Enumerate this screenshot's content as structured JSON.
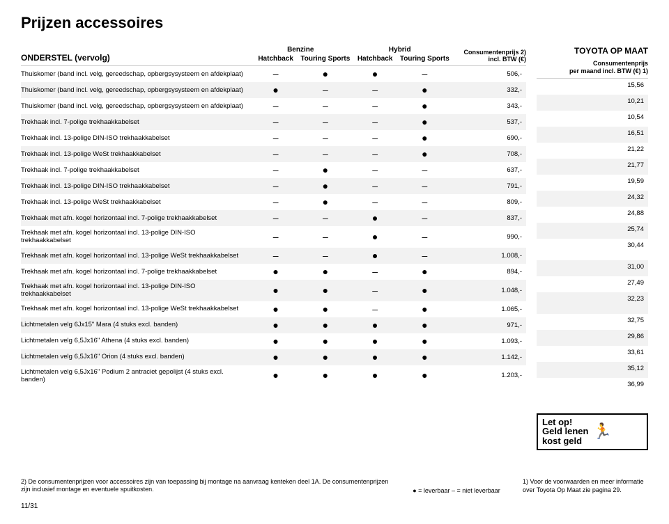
{
  "title": "Prijzen accessoires",
  "subtitle": "ONDERSTEL (vervolg)",
  "columns": {
    "group1": "Benzine",
    "group2": "Hybrid",
    "sub1": "Hatchback",
    "sub2": "Touring Sports",
    "sub3": "Hatchback",
    "sub4": "Touring Sports",
    "price_hdr_top": "Consumentenprijs 2)",
    "price_hdr_bot": "incl. BTW (€)"
  },
  "side": {
    "header": "TOYOTA OP MAAT",
    "sub_top": "Consumentenprijs",
    "sub_bot": "per maand incl. BTW (€) 1)"
  },
  "rows": [
    {
      "label": "Thuiskomer (band incl. velg, gereedschap, opbergsysysteem en afdekplaat)",
      "c": [
        "–",
        "●",
        "●",
        "–"
      ],
      "price": "506,-",
      "side": "15,56"
    },
    {
      "label": "Thuiskomer (band incl. velg, gereedschap, opbergsysysteem en afdekplaat)",
      "c": [
        "●",
        "–",
        "–",
        "●"
      ],
      "price": "332,-",
      "side": "10,21"
    },
    {
      "label": "Thuiskomer (band incl. velg, gereedschap, opbergsysysteem en afdekplaat)",
      "c": [
        "–",
        "–",
        "–",
        "●"
      ],
      "price": "343,-",
      "side": "10,54"
    },
    {
      "label": "Trekhaak incl. 7-polige trekhaakkabelset",
      "c": [
        "–",
        "–",
        "–",
        "●"
      ],
      "price": "537,-",
      "side": "16,51"
    },
    {
      "label": "Trekhaak incl. 13-polige DIN-ISO trekhaakkabelset",
      "c": [
        "–",
        "–",
        "–",
        "●"
      ],
      "price": "690,-",
      "side": "21,22"
    },
    {
      "label": "Trekhaak incl. 13-polige WeSt trekhaakkabelset",
      "c": [
        "–",
        "–",
        "–",
        "●"
      ],
      "price": "708,-",
      "side": "21,77"
    },
    {
      "label": "Trekhaak incl. 7-polige trekhaakkabelset",
      "c": [
        "–",
        "●",
        "–",
        "–"
      ],
      "price": "637,-",
      "side": "19,59"
    },
    {
      "label": "Trekhaak incl. 13-polige DIN-ISO trekhaakkabelset",
      "c": [
        "–",
        "●",
        "–",
        "–"
      ],
      "price": "791,-",
      "side": "24,32"
    },
    {
      "label": "Trekhaak incl. 13-polige WeSt trekhaakkabelset",
      "c": [
        "–",
        "●",
        "–",
        "–"
      ],
      "price": "809,-",
      "side": "24,88"
    },
    {
      "label": "Trekhaak met afn. kogel horizontaal incl. 7-polige trekhaakkabelset",
      "c": [
        "–",
        "–",
        "●",
        "–"
      ],
      "price": "837,-",
      "side": "25,74"
    },
    {
      "label": "Trekhaak met afn. kogel horizontaal incl. 13-polige DIN-ISO trekhaakkabelset",
      "c": [
        "–",
        "–",
        "●",
        "–"
      ],
      "price": "990,-",
      "side": "30,44"
    },
    {
      "label": "Trekhaak met afn. kogel horizontaal incl. 13-polige WeSt trekhaakkabelset",
      "c": [
        "–",
        "–",
        "●",
        "–"
      ],
      "price": "1.008,-",
      "side": "31,00"
    },
    {
      "label": "Trekhaak met afn. kogel horizontaal incl. 7-polige trekhaakkabelset",
      "c": [
        "●",
        "●",
        "–",
        "●"
      ],
      "price": "894,-",
      "side": "27,49"
    },
    {
      "label": "Trekhaak met afn. kogel horizontaal incl. 13-polige DIN-ISO trekhaakkabelset",
      "c": [
        "●",
        "●",
        "–",
        "●"
      ],
      "price": "1.048,-",
      "side": "32,23"
    },
    {
      "label": "Trekhaak met afn. kogel horizontaal incl. 13-polige WeSt trekhaakkabelset",
      "c": [
        "●",
        "●",
        "–",
        "●"
      ],
      "price": "1.065,-",
      "side": "32,75"
    },
    {
      "label": "Lichtmetalen velg 6Jx15\" Mara (4 stuks excl. banden)",
      "c": [
        "●",
        "●",
        "●",
        "●"
      ],
      "price": "971,-",
      "side": "29,86"
    },
    {
      "label": "Lichtmetalen velg 6,5Jx16\" Athena (4 stuks excl. banden)",
      "c": [
        "●",
        "●",
        "●",
        "●"
      ],
      "price": "1.093,-",
      "side": "33,61"
    },
    {
      "label": "Lichtmetalen velg 6,5Jx16\" Orion (4 stuks excl. banden)",
      "c": [
        "●",
        "●",
        "●",
        "●"
      ],
      "price": "1.142,-",
      "side": "35,12"
    },
    {
      "label": "Lichtmetalen velg 6,5Jx16\" Podium 2 antraciet gepolijst (4 stuks excl. banden)",
      "c": [
        "●",
        "●",
        "●",
        "●"
      ],
      "price": "1.203,-",
      "side": "36,99"
    }
  ],
  "warning": {
    "l1": "Let op!",
    "l2": "Geld lenen",
    "l3": "kost geld"
  },
  "footnote2": "2)   De consumentenprijzen voor accessoires zijn van toepassing bij montage na aanvraag kenteken deel 1A. De consumentenprijzen zijn inclusief montage en eventuele spuitkosten.",
  "legend": "● = leverbaar     – = niet leverbaar",
  "footnote1": "1) Voor de voorwaarden en meer informatie over Toyota Op Maat zie pagina 29.",
  "page": "11/31"
}
